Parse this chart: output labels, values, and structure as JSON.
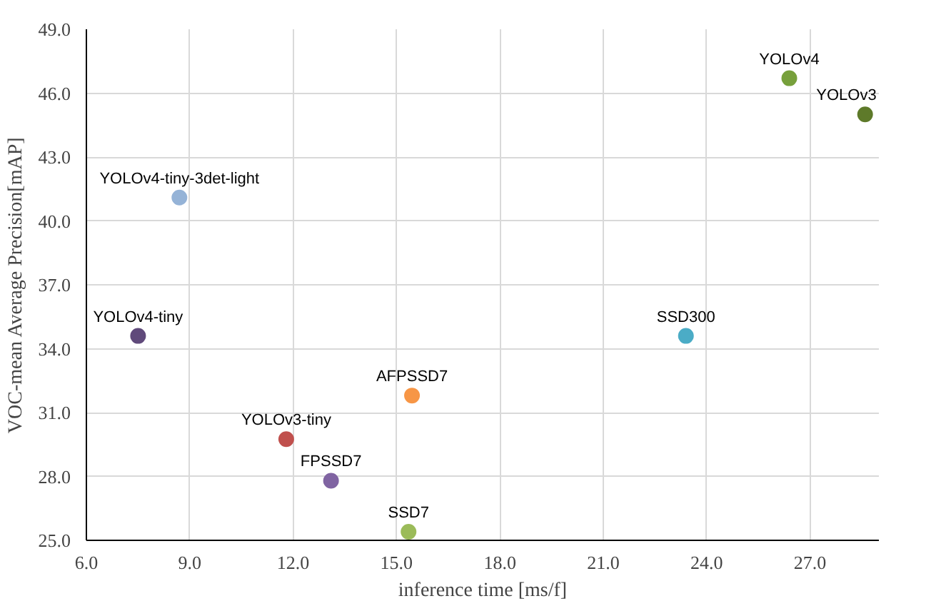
{
  "chart_data": {
    "type": "scatter",
    "xlabel": "inference time [ms/f]",
    "ylabel": "VOC-mean Average Precision[mAP]",
    "xlim": [
      6,
      29
    ],
    "ylim": [
      25,
      49
    ],
    "xticks": [
      {
        "value": 6,
        "label": "6.0"
      },
      {
        "value": 9,
        "label": "9.0"
      },
      {
        "value": 12,
        "label": "12.0"
      },
      {
        "value": 15,
        "label": "15.0"
      },
      {
        "value": 18,
        "label": "18.0"
      },
      {
        "value": 21,
        "label": "21.0"
      },
      {
        "value": 24,
        "label": "24.0"
      },
      {
        "value": 27,
        "label": "27.0"
      }
    ],
    "yticks": [
      {
        "value": 25,
        "label": "25.0"
      },
      {
        "value": 28,
        "label": "28.0"
      },
      {
        "value": 31,
        "label": "31.0"
      },
      {
        "value": 34,
        "label": "34.0"
      },
      {
        "value": 37,
        "label": "37.0"
      },
      {
        "value": 40,
        "label": "40.0"
      },
      {
        "value": 43,
        "label": "43.0"
      },
      {
        "value": 46,
        "label": "46.0"
      },
      {
        "value": 49,
        "label": "49.0"
      }
    ],
    "grid": true,
    "marker": "circle",
    "series": [
      {
        "name": "YOLOv4-tiny-3det-light",
        "color": "#95b3d7",
        "x": [
          8.7
        ],
        "values": [
          41.1
        ]
      },
      {
        "name": "YOLOv4",
        "color": "#77a03c",
        "x": [
          26.4
        ],
        "values": [
          46.7
        ]
      },
      {
        "name": "YOLOv3",
        "color": "#5e7a2a",
        "x": [
          28.6
        ],
        "values": [
          45.0
        ]
      },
      {
        "name": "YOLOv4-tiny",
        "color": "#604a7b",
        "x": [
          7.5
        ],
        "values": [
          34.6
        ]
      },
      {
        "name": "SSD300",
        "color": "#4bacc6",
        "x": [
          23.4
        ],
        "values": [
          34.6
        ]
      },
      {
        "name": "AFPSSD7",
        "color": "#f79646",
        "x": [
          15.45
        ],
        "values": [
          31.8
        ]
      },
      {
        "name": "YOLOv3-tiny",
        "color": "#c0504d",
        "x": [
          11.8
        ],
        "values": [
          29.75
        ]
      },
      {
        "name": "FPSSD7",
        "color": "#8064a2",
        "x": [
          13.1
        ],
        "values": [
          27.8
        ]
      },
      {
        "name": "SSD7",
        "color": "#9bbb59",
        "x": [
          15.35
        ],
        "values": [
          25.4
        ]
      }
    ]
  }
}
